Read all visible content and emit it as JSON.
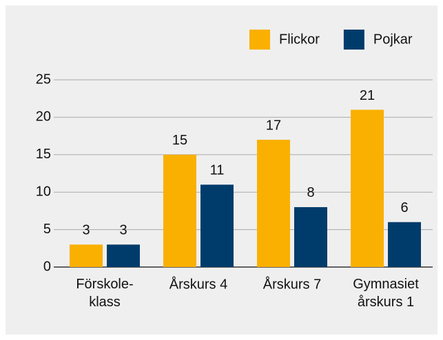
{
  "chart_data": {
    "type": "bar",
    "categories": [
      "Förskole-\nklass",
      "Årskurs 4",
      "Årskurs 7",
      "Gymnasiet\nårskurs 1"
    ],
    "series": [
      {
        "name": "Flickor",
        "color": "#f9b000",
        "values": [
          3,
          15,
          17,
          21
        ]
      },
      {
        "name": "Pojkar",
        "color": "#003c6b",
        "values": [
          3,
          11,
          8,
          6
        ]
      }
    ],
    "ylim": [
      0,
      25
    ],
    "yticks": [
      0,
      5,
      10,
      15,
      20,
      25
    ],
    "grid": true,
    "legend": "top-right"
  }
}
